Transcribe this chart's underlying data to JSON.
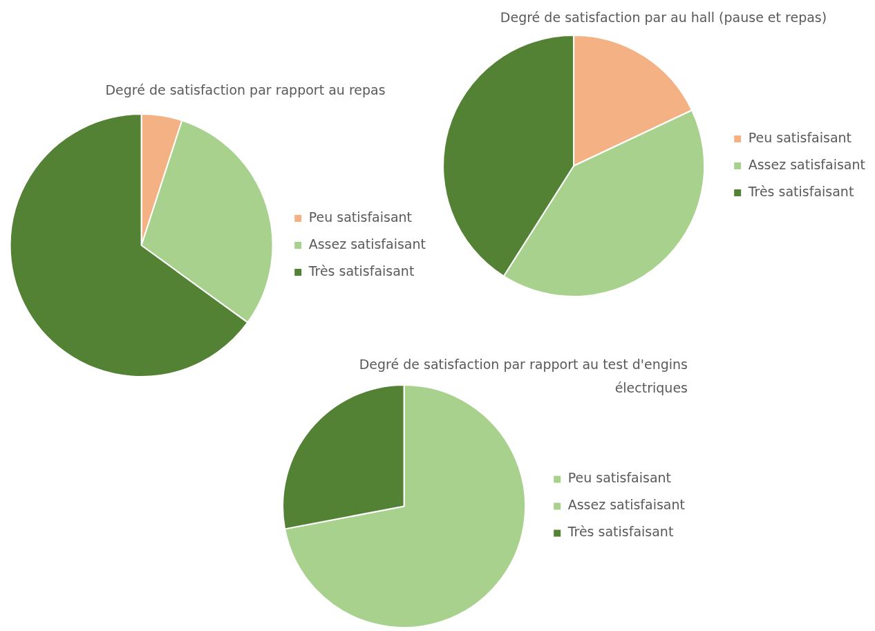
{
  "chart_data": [
    {
      "type": "pie",
      "title": "Degré de satisfaction par rapport au repas",
      "categories": [
        "Peu satisfaisant",
        "Assez satisfaisant",
        "Très satisfaisant"
      ],
      "values": [
        5,
        30,
        65
      ],
      "colors": [
        "#f4b183",
        "#a9d18e",
        "#548235"
      ],
      "legend": "right"
    },
    {
      "type": "pie",
      "title": "Degré de satisfaction par au hall (pause et repas)",
      "categories": [
        "Peu satisfaisant",
        "Assez satisfaisant",
        "Très satisfaisant"
      ],
      "values": [
        18,
        41,
        41
      ],
      "colors": [
        "#f4b183",
        "#a9d18e",
        "#548235"
      ],
      "legend": "right"
    },
    {
      "type": "pie",
      "title": "Degré de satisfaction par rapport au test d'engins électriques",
      "categories": [
        "Peu satisfaisant",
        "Assez satisfaisant",
        "Très satisfaisant"
      ],
      "values": [
        0,
        72,
        28
      ],
      "colors": [
        "#a9d18e",
        "#a9d18e",
        "#548235"
      ],
      "legend": "right"
    }
  ]
}
